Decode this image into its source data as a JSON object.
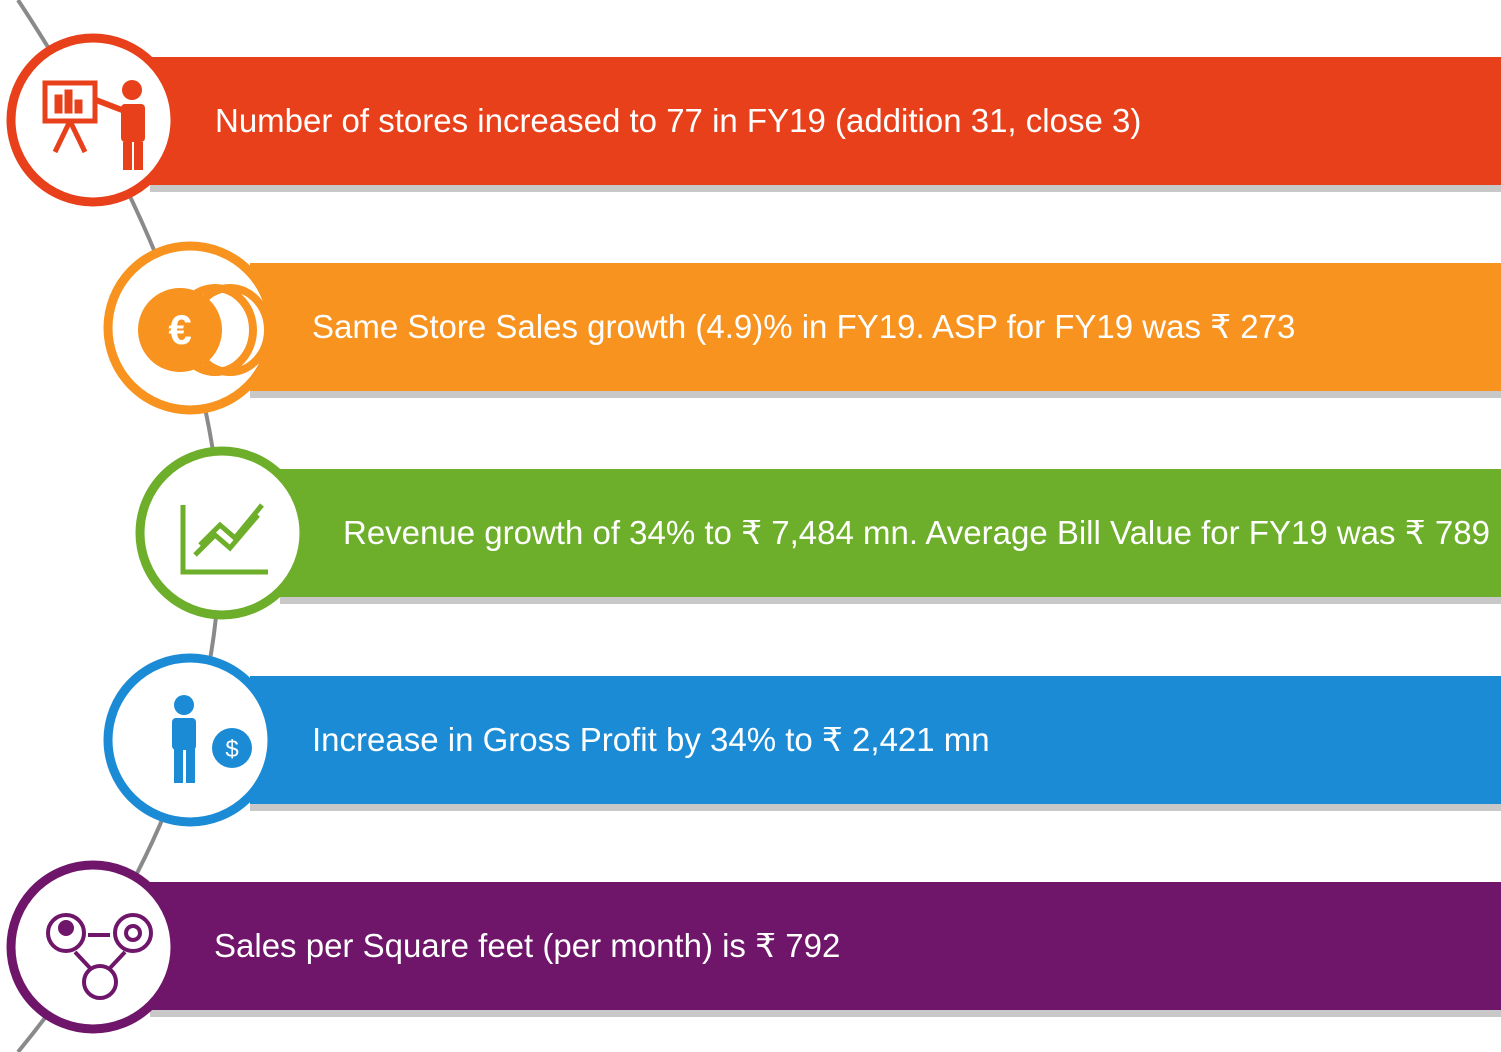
{
  "items": [
    {
      "text": "Number of stores increased to 77 in FY19 (addition 31, close 3)"
    },
    {
      "text": "Same Store Sales growth (4.9)% in  FY19. ASP for  FY19 was ₹ 273"
    },
    {
      "text": "Revenue growth of  34% to ₹ 7,484 mn. Average Bill Value for FY19 was ₹ 789"
    },
    {
      "text": "Increase in Gross Profit  by 34% to ₹ 2,421 mn"
    },
    {
      "text": "Sales per Square feet (per month) is ₹ 792"
    }
  ]
}
